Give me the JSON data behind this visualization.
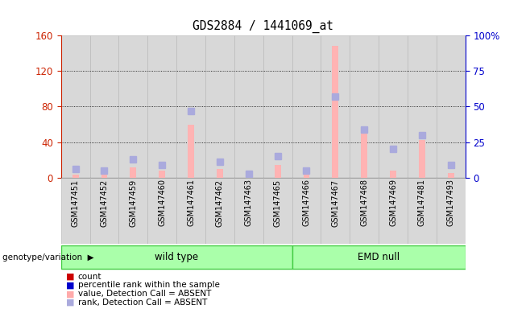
{
  "title": "GDS2884 / 1441069_at",
  "samples": [
    "GSM147451",
    "GSM147452",
    "GSM147459",
    "GSM147460",
    "GSM147461",
    "GSM147462",
    "GSM147463",
    "GSM147465",
    "GSM147466",
    "GSM147467",
    "GSM147468",
    "GSM147469",
    "GSM147481",
    "GSM147493"
  ],
  "wt_group": [
    "GSM147451",
    "GSM147452",
    "GSM147459",
    "GSM147460",
    "GSM147461",
    "GSM147462",
    "GSM147463",
    "GSM147465"
  ],
  "emd_group": [
    "GSM147466",
    "GSM147467",
    "GSM147468",
    "GSM147469",
    "GSM147481",
    "GSM147493"
  ],
  "value_absent": [
    3,
    5,
    12,
    8,
    60,
    10,
    3,
    14,
    3,
    148,
    55,
    8,
    42,
    5
  ],
  "rank_absent": [
    6,
    5,
    13,
    9,
    47,
    11,
    3,
    15,
    5,
    57,
    34,
    20,
    30,
    9
  ],
  "ylim_left": [
    0,
    160
  ],
  "ylim_right": [
    0,
    100
  ],
  "yticks_left": [
    0,
    40,
    80,
    120,
    160
  ],
  "ytick_labels_left": [
    "0",
    "40",
    "80",
    "120",
    "160"
  ],
  "yticks_right": [
    0,
    25,
    50,
    75,
    100
  ],
  "ytick_labels_right": [
    "0",
    "25",
    "50",
    "75",
    "100%"
  ],
  "color_value_absent": "#ffb3b3",
  "color_rank_absent": "#aaaadd",
  "group_color_light": "#aaffaa",
  "group_color_dark": "#44cc44",
  "bg_color": "#d8d8d8",
  "legend_items": [
    {
      "label": "count",
      "color": "#cc0000"
    },
    {
      "label": "percentile rank within the sample",
      "color": "#0000cc"
    },
    {
      "label": "value, Detection Call = ABSENT",
      "color": "#ffaaaa"
    },
    {
      "label": "rank, Detection Call = ABSENT",
      "color": "#aaaadd"
    }
  ]
}
